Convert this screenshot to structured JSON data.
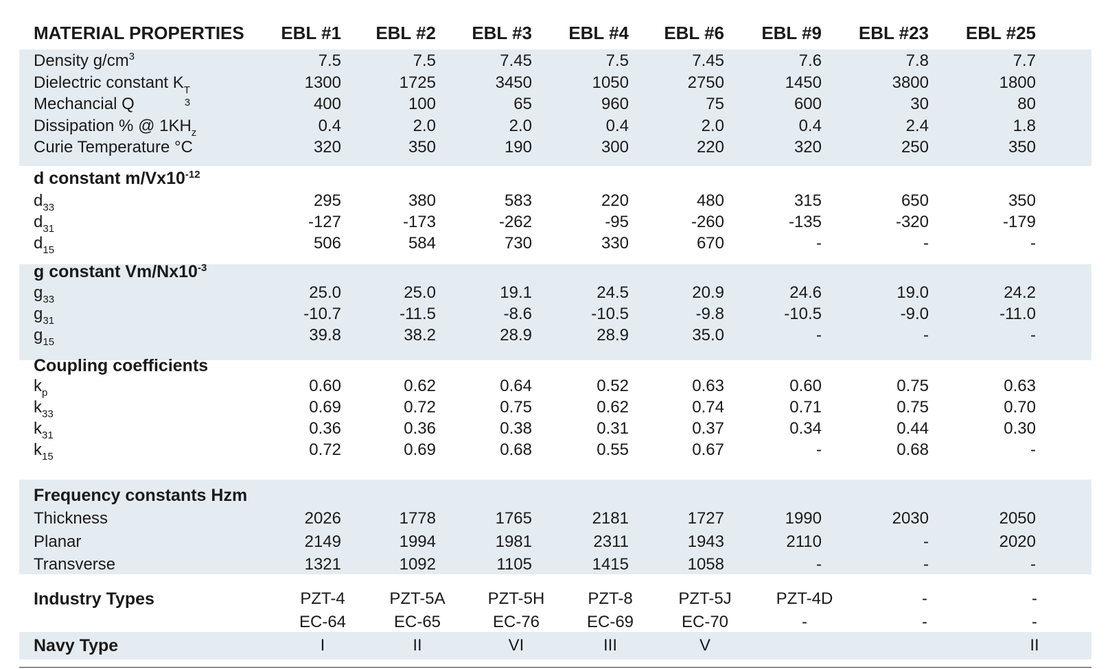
{
  "header": {
    "title": "MATERIAL PROPERTIES",
    "columns": [
      "EBL #1",
      "EBL #2",
      "EBL #3",
      "EBL #4",
      "EBL #6",
      "EBL #9",
      "EBL #23",
      "EBL #25"
    ]
  },
  "general": {
    "density": {
      "label": "Density g/cm",
      "sup": "3",
      "values": [
        "7.5",
        "7.5",
        "7.45",
        "7.5",
        "7.45",
        "7.6",
        "7.8",
        "7.7"
      ]
    },
    "dielectric": {
      "label": "Dielectric constant K",
      "sub": "T",
      "sub2": "3",
      "values": [
        "1300",
        "1725",
        "3450",
        "1050",
        "2750",
        "1450",
        "3800",
        "1800"
      ]
    },
    "mech_q": {
      "label": "Mechancial Q",
      "values": [
        "400",
        "100",
        "65",
        "960",
        "75",
        "600",
        "30",
        "80"
      ]
    },
    "dissipation": {
      "label": "Dissipation % @ 1KH",
      "sub": "z",
      "values": [
        "0.4",
        "2.0",
        "2.0",
        "0.4",
        "2.0",
        "0.4",
        "2.4",
        "1.8"
      ]
    },
    "curie": {
      "label": "Curie Temperature °C",
      "values": [
        "320",
        "350",
        "190",
        "300",
        "220",
        "320",
        "250",
        "350"
      ]
    }
  },
  "d_constant": {
    "title": "d constant m/Vx10",
    "title_sup": "-12",
    "d33": {
      "base": "d",
      "sub": "33",
      "values": [
        "295",
        "380",
        "583",
        "220",
        "480",
        "315",
        "650",
        "350"
      ]
    },
    "d31": {
      "base": "d",
      "sub": "31",
      "values": [
        "-127",
        "-173",
        "-262",
        "-95",
        "-260",
        "-135",
        "-320",
        "-179"
      ]
    },
    "d15": {
      "base": "d",
      "sub": "15",
      "values": [
        "506",
        "584",
        "730",
        "330",
        "670",
        "-",
        "-",
        "-"
      ]
    }
  },
  "g_constant": {
    "title": "g constant Vm/Nx10",
    "title_sup": "-3",
    "g33": {
      "base": "g",
      "sub": "33",
      "values": [
        "25.0",
        "25.0",
        "19.1",
        "24.5",
        "20.9",
        "24.6",
        "19.0",
        "24.2"
      ]
    },
    "g31": {
      "base": "g",
      "sub": "31",
      "values": [
        "-10.7",
        "-11.5",
        "-8.6",
        "-10.5",
        "-9.8",
        "-10.5",
        "-9.0",
        "-11.0"
      ]
    },
    "g15": {
      "base": "g",
      "sub": "15",
      "values": [
        "39.8",
        "38.2",
        "28.9",
        "28.9",
        "35.0",
        "-",
        "-",
        "-"
      ]
    }
  },
  "coupling": {
    "title": "Coupling coefficients",
    "kp": {
      "base": "k",
      "sub": "p",
      "values": [
        "0.60",
        "0.62",
        "0.64",
        "0.52",
        "0.63",
        "0.60",
        "0.75",
        "0.63"
      ]
    },
    "k33": {
      "base": "k",
      "sub": "33",
      "values": [
        "0.69",
        "0.72",
        "0.75",
        "0.62",
        "0.74",
        "0.71",
        "0.75",
        "0.70"
      ]
    },
    "k31": {
      "base": "k",
      "sub": "31",
      "values": [
        "0.36",
        "0.36",
        "0.38",
        "0.31",
        "0.37",
        "0.34",
        "0.44",
        "0.30"
      ]
    },
    "k15": {
      "base": "k",
      "sub": "15",
      "values": [
        "0.72",
        "0.69",
        "0.68",
        "0.55",
        "0.67",
        "-",
        "0.68",
        "-"
      ]
    }
  },
  "frequency": {
    "title": "Frequency constants Hzm",
    "thickness": {
      "label": "Thickness",
      "values": [
        "2026",
        "1778",
        "1765",
        "2181",
        "1727",
        "1990",
        "2030",
        "2050"
      ]
    },
    "planar": {
      "label": "Planar",
      "values": [
        "2149",
        "1994",
        "1981",
        "2311",
        "1943",
        "2110",
        "-",
        "2020"
      ]
    },
    "transverse": {
      "label": "Transverse",
      "values": [
        "1321",
        "1092",
        "1105",
        "1415",
        "1058",
        "-",
        "-",
        "-"
      ]
    }
  },
  "industry": {
    "title": "Industry Types",
    "row1": [
      "PZT-4",
      "PZT-5A",
      "PZT-5H",
      "PZT-8",
      "PZT-5J",
      "PZT-4D",
      "-",
      "-"
    ],
    "row2": [
      "EC-64",
      "EC-65",
      "EC-76",
      "EC-69",
      "EC-70",
      "-",
      "-",
      "-"
    ]
  },
  "navy": {
    "title": "Navy Type",
    "values": [
      "I",
      "II",
      "VI",
      "III",
      "V",
      "",
      "",
      "II"
    ]
  },
  "colors": {
    "band": "#e5ecf1",
    "text": "#1a1a1a",
    "rule": "#333333"
  }
}
